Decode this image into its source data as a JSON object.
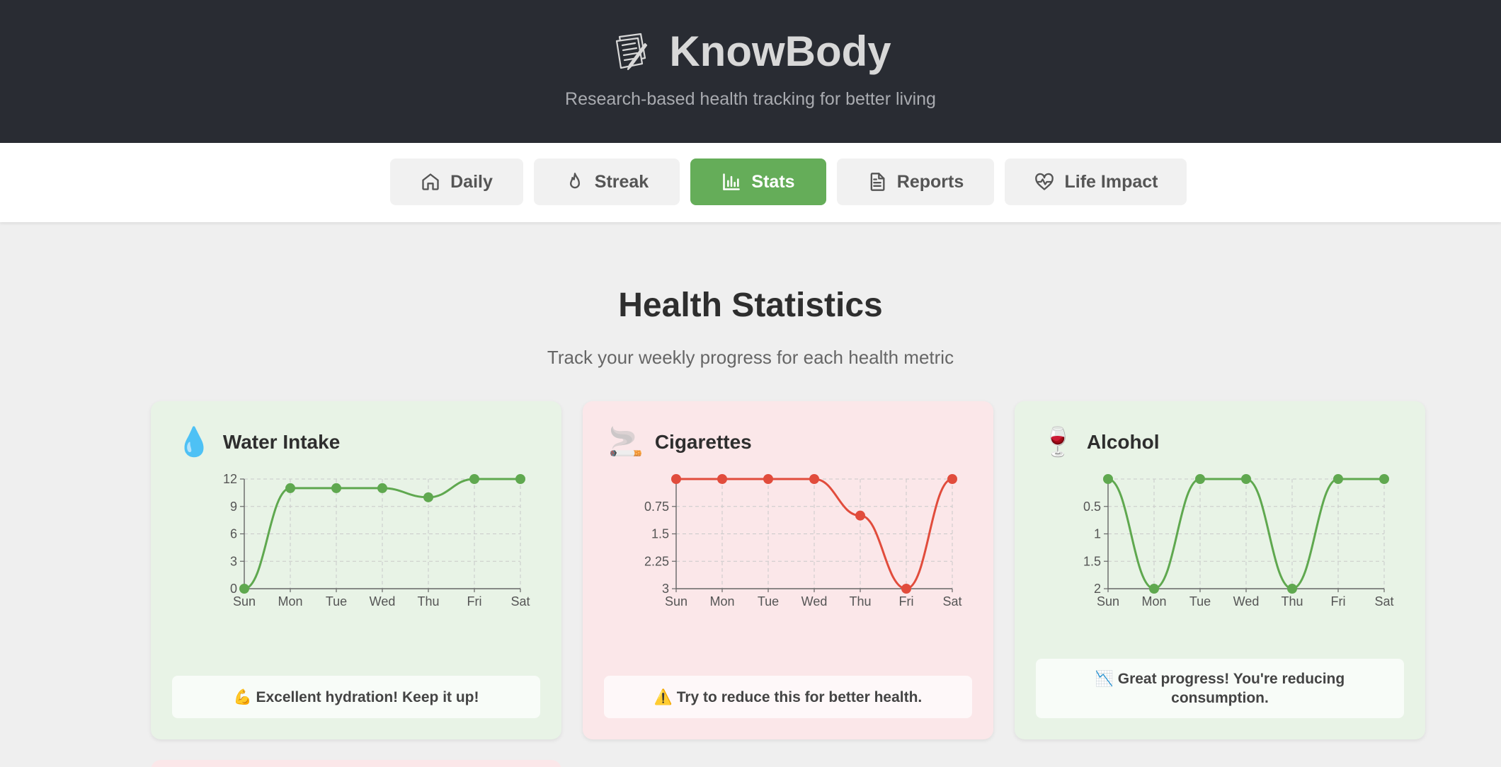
{
  "app": {
    "title": "KnowBody",
    "subtitle": "Research-based health tracking for better living",
    "icon": "notes-icon"
  },
  "nav": [
    {
      "label": "Daily",
      "icon": "home-icon",
      "active": false
    },
    {
      "label": "Streak",
      "icon": "flame-icon",
      "active": false
    },
    {
      "label": "Stats",
      "icon": "bar-chart-icon",
      "active": true
    },
    {
      "label": "Reports",
      "icon": "document-icon",
      "active": false
    },
    {
      "label": "Life Impact",
      "icon": "heart-pulse-icon",
      "active": false
    }
  ],
  "page": {
    "title": "Health Statistics",
    "subtitle": "Track your weekly progress for each health metric"
  },
  "cards": [
    {
      "title": "Water Intake",
      "emoji": "💧",
      "theme": "green",
      "note": "💪 Excellent hydration! Keep it up!"
    },
    {
      "title": "Cigarettes",
      "emoji": "🚬",
      "theme": "red",
      "note": "⚠️ Try to reduce this for better health."
    },
    {
      "title": "Alcohol",
      "emoji": "🍷",
      "theme": "green",
      "note": "📉 Great progress! You're reducing consumption."
    }
  ],
  "colors": {
    "header_bg": "#292c33",
    "active_tab": "#65ad59",
    "good_line": "#5fa84f",
    "bad_line": "#e14c3c"
  },
  "chart_data": [
    {
      "type": "line",
      "title": "Water Intake",
      "categories": [
        "Sun",
        "Mon",
        "Tue",
        "Wed",
        "Thu",
        "Fri",
        "Sat"
      ],
      "values": [
        0,
        11,
        11,
        11,
        10,
        12,
        12
      ],
      "yticks": [
        "0",
        "3",
        "6",
        "9",
        "12"
      ],
      "ylim": [
        0,
        12
      ],
      "inverted": false,
      "grid": true,
      "color": "#5fa84f"
    },
    {
      "type": "line",
      "title": "Cigarettes",
      "categories": [
        "Sun",
        "Mon",
        "Tue",
        "Wed",
        "Thu",
        "Fri",
        "Sat"
      ],
      "values": [
        0,
        0,
        0,
        0,
        1,
        3,
        0
      ],
      "yticks": [
        "0.75",
        "1.5",
        "2.25",
        "3"
      ],
      "ylim": [
        0,
        3
      ],
      "inverted": true,
      "grid": true,
      "color": "#e14c3c"
    },
    {
      "type": "line",
      "title": "Alcohol",
      "categories": [
        "Sun",
        "Mon",
        "Tue",
        "Wed",
        "Thu",
        "Fri",
        "Sat"
      ],
      "values": [
        0,
        2,
        0,
        0,
        2,
        0,
        0
      ],
      "yticks": [
        "0.5",
        "1",
        "1.5",
        "2"
      ],
      "ylim": [
        0,
        2
      ],
      "inverted": true,
      "grid": true,
      "color": "#5fa84f"
    }
  ]
}
